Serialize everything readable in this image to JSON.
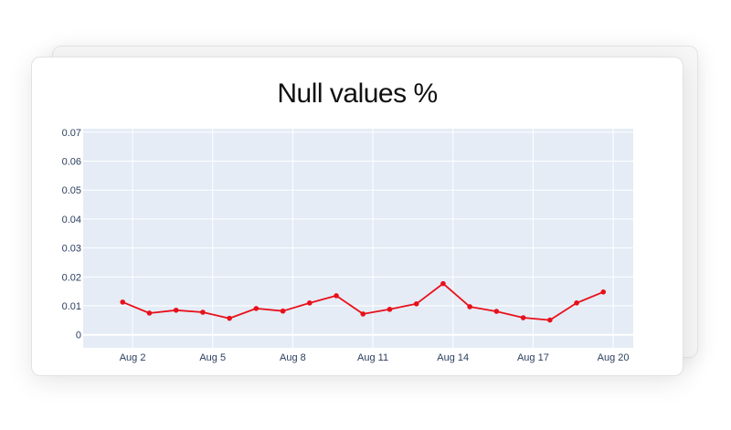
{
  "title": "Null values %",
  "colors": {
    "line": "#e8101a",
    "plot_bg": "#e5ecf6",
    "grid": "#ffffff",
    "tick_text": "#2a3f5f"
  },
  "chart_data": {
    "type": "line",
    "title": "Null values %",
    "xlabel": "",
    "ylabel": "",
    "ylim": [
      -0.0045,
      0.0712
    ],
    "grid": true,
    "legend": "none",
    "yticks": [
      "0",
      "0.01",
      "0.02",
      "0.03",
      "0.04",
      "0.05",
      "0.06",
      "0.07"
    ],
    "ytick_values": [
      0,
      0.01,
      0.02,
      0.03,
      0.04,
      0.05,
      0.06,
      0.07
    ],
    "xticks": [
      "Aug 2",
      "Aug 5",
      "Aug 8",
      "Aug 11",
      "Aug 14",
      "Aug 17",
      "Aug 20"
    ],
    "xtick_days": [
      2,
      5,
      8,
      11,
      14,
      17,
      20
    ],
    "xlim_days": [
      0.15,
      20.75
    ],
    "series": [
      {
        "name": "Null values %",
        "x_days": [
          1.63,
          2.63,
          3.63,
          4.63,
          5.63,
          6.63,
          7.63,
          8.63,
          9.63,
          10.63,
          11.63,
          12.63,
          13.63,
          14.63,
          15.63,
          16.63,
          17.63,
          18.63,
          19.63
        ],
        "values": [
          0.0113,
          0.0075,
          0.0085,
          0.0078,
          0.0057,
          0.0091,
          0.0082,
          0.011,
          0.0135,
          0.0072,
          0.0088,
          0.0107,
          0.0177,
          0.0097,
          0.0081,
          0.0059,
          0.0051,
          0.011,
          0.0148
        ]
      }
    ]
  }
}
